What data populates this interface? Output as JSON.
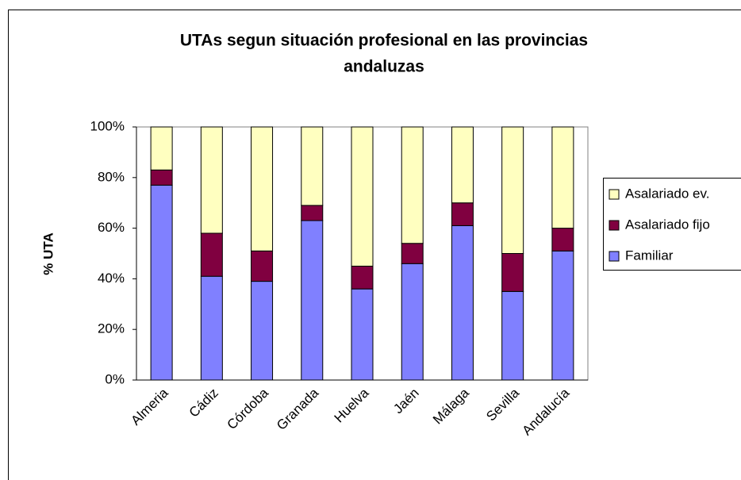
{
  "chart_data": {
    "type": "stacked_bar",
    "title": [
      "UTAs segun situación profesional en las provincias",
      "andaluzas"
    ],
    "y_label": "% UTA",
    "categories": [
      "Almeria",
      "Cádiz",
      "Córdoba",
      "Granada",
      "Huelva",
      "Jaén",
      "Málaga",
      "Sevilla",
      "Andalucía"
    ],
    "series": [
      {
        "name": "Familiar",
        "color": "#8080ff",
        "values": [
          77,
          41,
          39,
          63,
          36,
          46,
          61,
          35,
          51
        ]
      },
      {
        "name": "Asalariado fijo",
        "color": "#800040",
        "values": [
          6,
          17,
          12,
          6,
          9,
          8,
          9,
          15,
          9
        ]
      },
      {
        "name": "Asalariado ev.",
        "color": "#ffffc0",
        "values": [
          17,
          42,
          49,
          31,
          55,
          46,
          30,
          50,
          40
        ]
      }
    ],
    "ylim": [
      0,
      100
    ],
    "yticks": [
      {
        "value": 0,
        "label": "0%"
      },
      {
        "value": 20,
        "label": "20%"
      },
      {
        "value": 40,
        "label": "40%"
      },
      {
        "value": 60,
        "label": "60%"
      },
      {
        "value": 80,
        "label": "80%"
      },
      {
        "value": 100,
        "label": "100%"
      }
    ],
    "legend": "right"
  }
}
